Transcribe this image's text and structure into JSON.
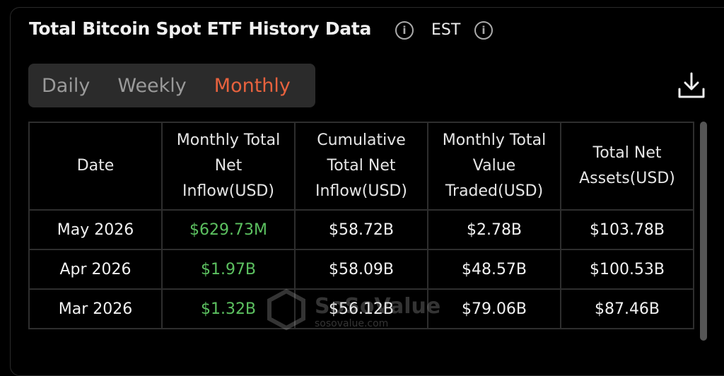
{
  "header": {
    "title": "Total Bitcoin Spot ETF History Data",
    "timezone": "EST"
  },
  "tabs": {
    "items": [
      "Daily",
      "Weekly",
      "Monthly"
    ],
    "active": 2
  },
  "table": {
    "columns": [
      "Date",
      "Monthly Total Net Inflow(USD)",
      "Cumulative Total Net Inflow(USD)",
      "Monthly Total Value Traded(USD)",
      "Total Net Assets(USD)"
    ],
    "rows": [
      [
        "May 2026",
        "$629.73M",
        "$58.72B",
        "$2.78B",
        "$103.78B"
      ],
      [
        "Apr 2026",
        "$1.97B",
        "$58.09B",
        "$48.57B",
        "$100.53B"
      ],
      [
        "Mar 2026",
        "$1.32B",
        "$56.12B",
        "$79.06B",
        "$87.46B"
      ]
    ]
  },
  "watermark": {
    "brand": "SoSoValue",
    "url": "sosovalue.com"
  }
}
